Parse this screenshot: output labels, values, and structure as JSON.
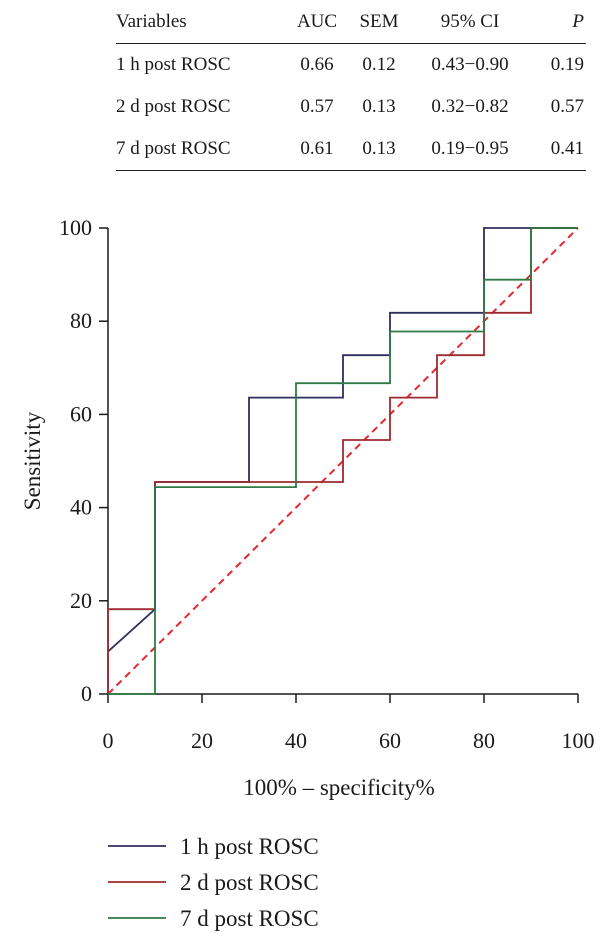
{
  "table": {
    "headers": [
      "Variables",
      "AUC",
      "SEM",
      "95% CI",
      "P"
    ],
    "rows": [
      [
        "1 h post ROSC",
        "0.66",
        "0.12",
        "0.43−0.90",
        "0.19"
      ],
      [
        "2 d post ROSC",
        "0.57",
        "0.13",
        "0.32−0.82",
        "0.57"
      ],
      [
        "7 d post ROSC",
        "0.61",
        "0.13",
        "0.19−0.95",
        "0.41"
      ]
    ]
  },
  "chart_data": {
    "type": "line",
    "title": "",
    "xlabel": "100% – specificity%",
    "ylabel": "Sensitivity",
    "xlim": [
      0,
      100
    ],
    "ylim": [
      0,
      100
    ],
    "xticks": [
      0,
      20,
      40,
      60,
      80,
      100
    ],
    "yticks": [
      0,
      20,
      40,
      60,
      80,
      100
    ],
    "grid": false,
    "legend_position": "bottom",
    "series": [
      {
        "name": "1 h post ROSC",
        "color": "#2e2f5e",
        "points": [
          [
            0,
            9.1
          ],
          [
            10,
            18.2
          ],
          [
            10,
            45.5
          ],
          [
            30,
            45.5
          ],
          [
            30,
            63.6
          ],
          [
            50,
            63.6
          ],
          [
            50,
            72.7
          ],
          [
            60,
            72.7
          ],
          [
            60,
            81.8
          ],
          [
            80,
            81.8
          ],
          [
            80,
            100
          ],
          [
            90,
            100
          ],
          [
            100,
            100
          ]
        ]
      },
      {
        "name": "2 d post ROSC",
        "color": "#9e2a2f",
        "points": [
          [
            0,
            0
          ],
          [
            0,
            18.2
          ],
          [
            10,
            18.2
          ],
          [
            10,
            45.5
          ],
          [
            40,
            45.5
          ],
          [
            50,
            45.5
          ],
          [
            50,
            54.5
          ],
          [
            60,
            54.5
          ],
          [
            60,
            63.6
          ],
          [
            70,
            63.6
          ],
          [
            70,
            72.7
          ],
          [
            80,
            72.7
          ],
          [
            80,
            81.8
          ],
          [
            90,
            81.8
          ],
          [
            90,
            100
          ],
          [
            100,
            100
          ]
        ]
      },
      {
        "name": "7 d post ROSC",
        "color": "#2f7a45",
        "points": [
          [
            0,
            0
          ],
          [
            10,
            0
          ],
          [
            10,
            44.4
          ],
          [
            40,
            44.4
          ],
          [
            40,
            66.7
          ],
          [
            60,
            66.7
          ],
          [
            60,
            77.8
          ],
          [
            80,
            77.8
          ],
          [
            80,
            88.9
          ],
          [
            90,
            88.9
          ],
          [
            90,
            100
          ],
          [
            100,
            100
          ]
        ]
      }
    ],
    "reference_line": {
      "points": [
        [
          0,
          0
        ],
        [
          100,
          100
        ]
      ],
      "color": "#e8262b",
      "style": "dashed"
    }
  }
}
